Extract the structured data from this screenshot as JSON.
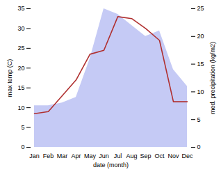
{
  "chart_data": {
    "type": "line",
    "categories": [
      "Jan",
      "Feb",
      "Mar",
      "Apr",
      "May",
      "Jun",
      "Jul",
      "Aug",
      "Sep",
      "Oct",
      "Nov",
      "Dec"
    ],
    "xlabel": "date (month)",
    "ylabel": "max temp (C)",
    "y2label": "med. precipitation (kg/m2)",
    "ylim": [
      0,
      35
    ],
    "yticks": [
      0,
      5,
      10,
      15,
      20,
      25,
      30,
      35
    ],
    "y2lim": [
      0,
      25
    ],
    "y2ticks": [
      0,
      5,
      10,
      15,
      20,
      25
    ],
    "series": [
      {
        "type": "area",
        "axis": "y2",
        "color": "#c5caf5",
        "values": [
          7.5,
          7.5,
          8.0,
          9.0,
          16.0,
          25.0,
          24.0,
          22.0,
          20.0,
          21.0,
          14.0,
          11.0
        ]
      },
      {
        "type": "line",
        "color": "#b03030",
        "values": [
          8.5,
          9.0,
          13.0,
          17.0,
          23.5,
          24.5,
          33.0,
          32.5,
          30.0,
          27.0,
          11.5,
          11.5
        ]
      }
    ]
  }
}
